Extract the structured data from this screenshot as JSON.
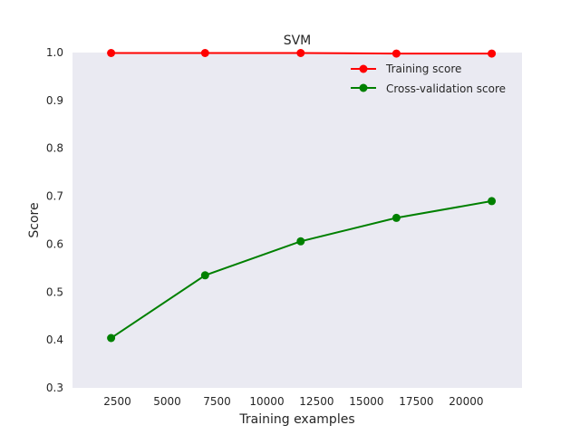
{
  "chart_data": {
    "type": "line",
    "title": "SVM",
    "xlabel": "Training examples",
    "ylabel": "Score",
    "xlim": [
      250,
      22800
    ],
    "ylim": [
      0.3,
      1.0
    ],
    "xticks": [
      2500,
      5000,
      7500,
      10000,
      12500,
      15000,
      17500,
      20000
    ],
    "yticks": [
      0.3,
      0.4,
      0.5,
      0.6,
      0.7,
      0.8,
      0.9,
      1.0
    ],
    "xtick_labels": [
      "2500",
      "5000",
      "7500",
      "10000",
      "12500",
      "15000",
      "17500",
      "20000"
    ],
    "ytick_labels": [
      "0.3",
      "0.4",
      "0.5",
      "0.6",
      "0.7",
      "0.8",
      "0.9",
      "1.0"
    ],
    "grid": false,
    "background": "#eaeaf2",
    "legend_position": "top-right",
    "x": [
      2187,
      6900,
      11700,
      16500,
      21280
    ],
    "series": [
      {
        "name": "Training score",
        "color": "#ff0000",
        "marker": "circle",
        "values": [
          0.999,
          0.999,
          0.999,
          0.998,
          0.998
        ]
      },
      {
        "name": "Cross-validation score",
        "color": "#008000",
        "marker": "circle",
        "values": [
          0.404,
          0.535,
          0.606,
          0.655,
          0.69
        ]
      }
    ]
  }
}
